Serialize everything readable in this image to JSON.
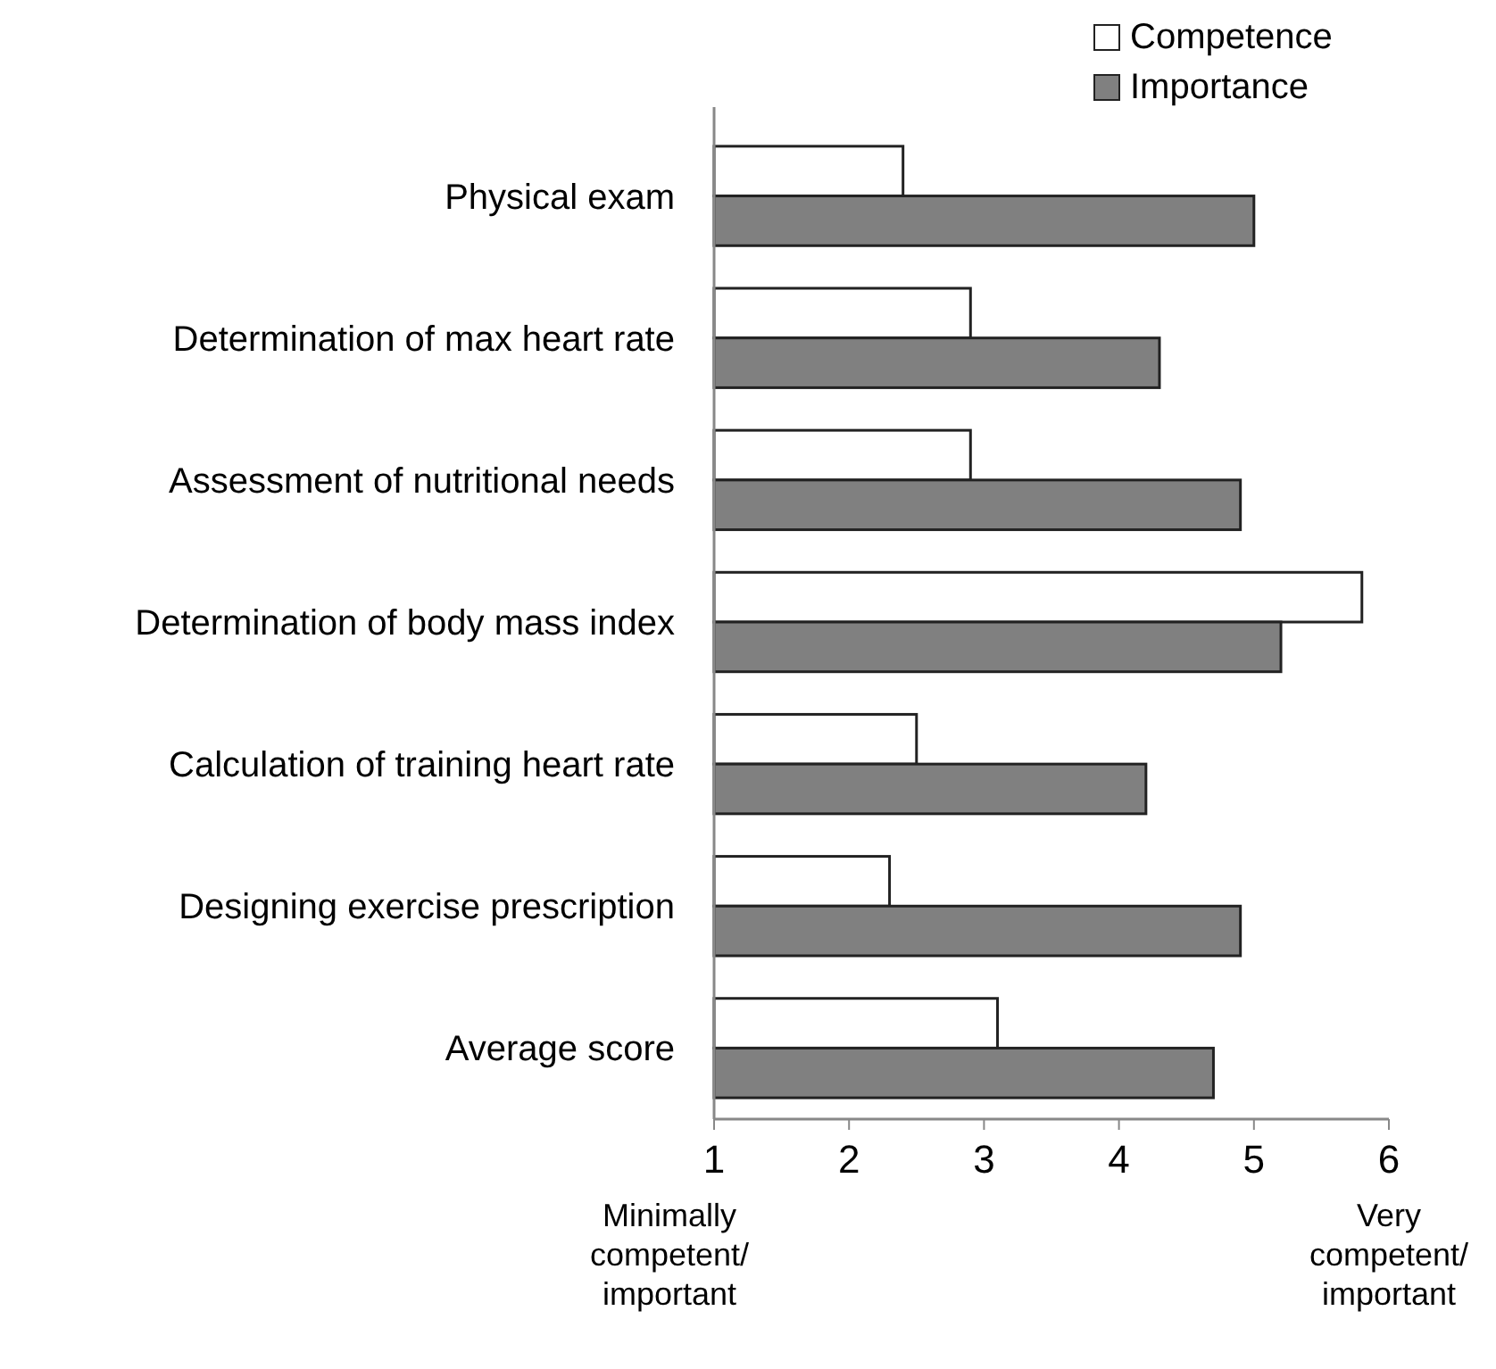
{
  "chart_data": {
    "type": "bar",
    "orientation": "horizontal",
    "categories": [
      "Physical exam",
      "Determination of max heart rate",
      "Assessment of nutritional needs",
      "Determination of body mass index",
      "Calculation of training heart rate",
      "Designing exercise prescription",
      "Average score"
    ],
    "series": [
      {
        "name": "Competence",
        "color": "#ffffff",
        "values": [
          2.4,
          2.9,
          2.9,
          5.8,
          2.5,
          2.3,
          3.1
        ]
      },
      {
        "name": "Importance",
        "color": "#808080",
        "values": [
          5.0,
          4.3,
          4.9,
          5.2,
          4.2,
          4.9,
          4.7
        ]
      }
    ],
    "xlim": [
      1,
      6
    ],
    "xticks": [
      1,
      2,
      3,
      4,
      5,
      6
    ],
    "legend": "top right",
    "annotations": [
      "Minimally competent/ important",
      "Very competent/ important"
    ]
  }
}
